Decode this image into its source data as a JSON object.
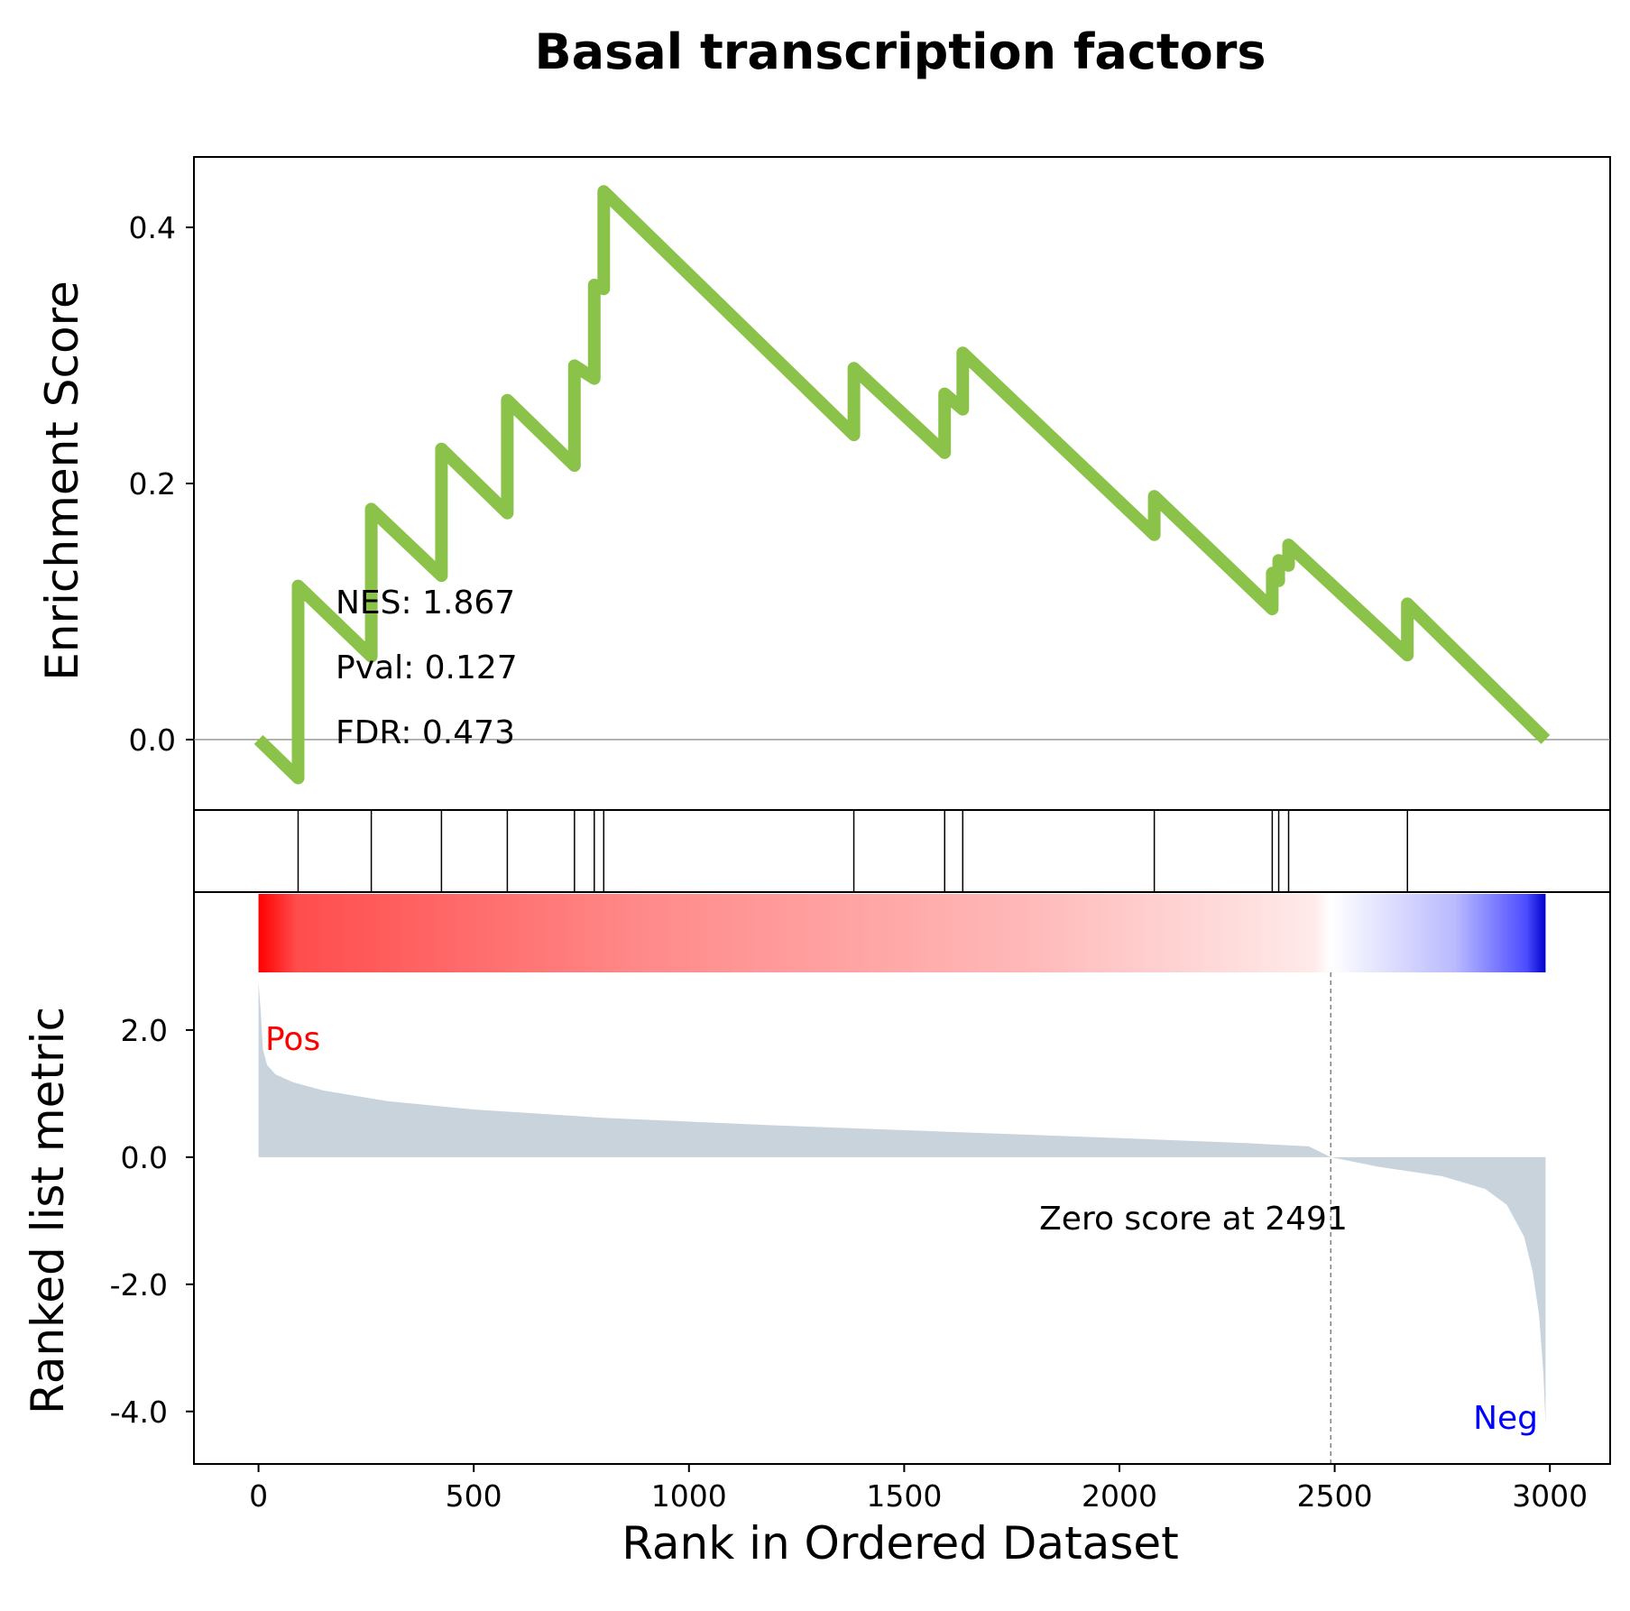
{
  "chart_data": {
    "type": "line",
    "title": "Basal transcription factors",
    "xlabel": "Rank in Ordered Dataset",
    "xlim": [
      -150,
      3140
    ],
    "xticks": [
      0,
      500,
      1000,
      1500,
      2000,
      2500,
      3000
    ],
    "enrichment": {
      "ylabel": "Enrichment Score",
      "ylim": [
        -0.055,
        0.455
      ],
      "yticks": [
        "0.0",
        "0.2",
        "0.4"
      ],
      "ytick_values": [
        0.0,
        0.2,
        0.4
      ],
      "color": "#8bc34a",
      "points": [
        [
          0,
          0.0
        ],
        [
          92,
          -0.03
        ],
        [
          92,
          0.12
        ],
        [
          262,
          0.065
        ],
        [
          262,
          0.18
        ],
        [
          425,
          0.128
        ],
        [
          425,
          0.227
        ],
        [
          578,
          0.177
        ],
        [
          578,
          0.265
        ],
        [
          734,
          0.214
        ],
        [
          734,
          0.292
        ],
        [
          780,
          0.282
        ],
        [
          780,
          0.355
        ],
        [
          802,
          0.352
        ],
        [
          802,
          0.428
        ],
        [
          1383,
          0.238
        ],
        [
          1383,
          0.29
        ],
        [
          1594,
          0.224
        ],
        [
          1594,
          0.27
        ],
        [
          1636,
          0.258
        ],
        [
          1636,
          0.302
        ],
        [
          2081,
          0.16
        ],
        [
          2081,
          0.19
        ],
        [
          2355,
          0.102
        ],
        [
          2355,
          0.13
        ],
        [
          2370,
          0.124
        ],
        [
          2370,
          0.14
        ],
        [
          2393,
          0.136
        ],
        [
          2393,
          0.152
        ],
        [
          2669,
          0.066
        ],
        [
          2669,
          0.106
        ],
        [
          2990,
          0.0
        ]
      ],
      "stats": [
        "NES: 1.867",
        "Pval: 0.127",
        "FDR: 0.473"
      ]
    },
    "hits": [
      92,
      262,
      425,
      578,
      734,
      780,
      802,
      1383,
      1594,
      1636,
      2081,
      2355,
      2370,
      2393,
      2669
    ],
    "ranked_metric": {
      "ylabel": "Ranked list metric",
      "ylim": [
        -4.5,
        2.85
      ],
      "yticks": [
        "2.0",
        "0.0",
        "-2.0",
        "-4.0"
      ],
      "ytick_values": [
        2.0,
        0.0,
        -2.0,
        -4.0
      ],
      "fill_color": "#c8d3dc",
      "profile": [
        [
          0,
          2.75
        ],
        [
          5,
          2.3
        ],
        [
          10,
          1.7
        ],
        [
          20,
          1.45
        ],
        [
          40,
          1.3
        ],
        [
          80,
          1.18
        ],
        [
          150,
          1.05
        ],
        [
          300,
          0.88
        ],
        [
          500,
          0.75
        ],
        [
          800,
          0.62
        ],
        [
          1200,
          0.5
        ],
        [
          1600,
          0.4
        ],
        [
          2000,
          0.3
        ],
        [
          2300,
          0.22
        ],
        [
          2440,
          0.17
        ],
        [
          2491,
          0.0
        ],
        [
          2600,
          -0.15
        ],
        [
          2750,
          -0.3
        ],
        [
          2850,
          -0.5
        ],
        [
          2900,
          -0.75
        ],
        [
          2940,
          -1.25
        ],
        [
          2960,
          -1.8
        ],
        [
          2975,
          -2.5
        ],
        [
          2985,
          -3.4
        ],
        [
          2990,
          -4.2
        ]
      ],
      "zero_cross": 2491,
      "zero_label": "Zero score at 2491",
      "pos_label": "Pos",
      "neg_label": "Neg",
      "pos_color": "#ff0000",
      "neg_color": "#0000ff"
    },
    "color_bar": {
      "from": 0,
      "to": 2990,
      "split": 2491,
      "pos_color": "#ff0000",
      "neg_color": "#0000ff"
    }
  }
}
